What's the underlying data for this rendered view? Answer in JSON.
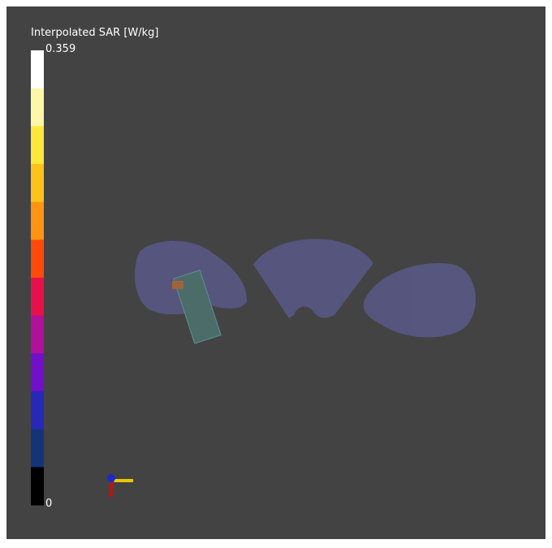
{
  "colorbar": {
    "title": "Interpolated SAR [W/kg]",
    "max_label": "0.359",
    "min_label": "0",
    "colors": [
      "#ffffff",
      "#fff7a8",
      "#ffe83a",
      "#ffc21a",
      "#ff9412",
      "#ff4a0a",
      "#e8104a",
      "#b0109a",
      "#7010c8",
      "#2828b8",
      "#143478",
      "#000000"
    ]
  }
}
